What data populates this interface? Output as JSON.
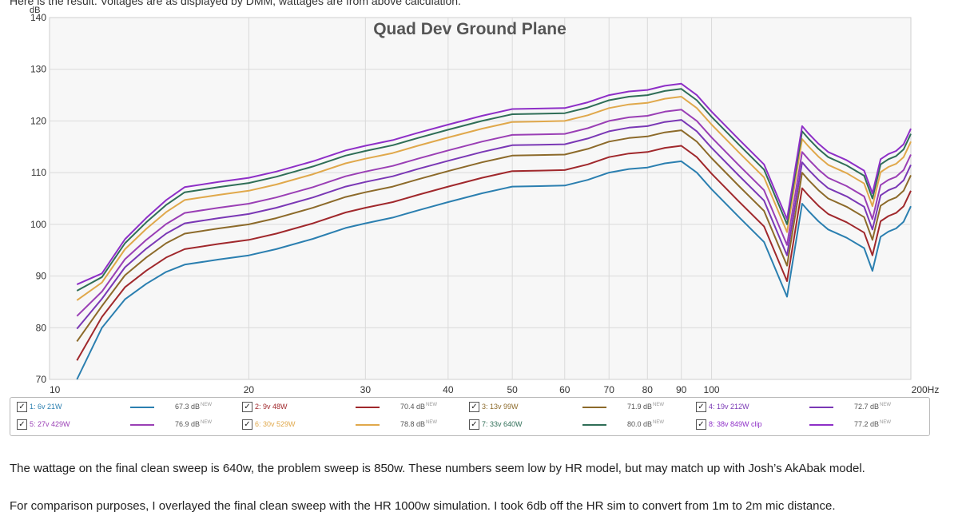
{
  "page": {
    "top_text": "Here is the result. Voltages are as displayed by DMM, wattages are from above calculation.",
    "paragraph1": "The wattage on the final clean sweep is 640w, the problem sweep is 850w. These numbers seem low by HR model, but may match up with Josh’s AkAbak model.",
    "paragraph2": "For comparison purposes, I overlayed the final clean sweep with the HR 1000w simulation. I took 6db off the HR sim to convert from 1m to 2m mic distance."
  },
  "chart_data": {
    "type": "line",
    "title": "Quad Dev Ground Plane",
    "ylabel": "dB",
    "xlabel": "",
    "x_scale": "log",
    "xlim": [
      10,
      200
    ],
    "ylim": [
      70,
      140
    ],
    "grid": true,
    "y_ticks": [
      "140",
      "130",
      "120",
      "110",
      "100",
      "90",
      "80",
      "70"
    ],
    "x_ticks": [
      "10",
      "20",
      "30",
      "40",
      "50",
      "60",
      "70",
      "80",
      "90",
      "100",
      "200Hz"
    ],
    "x": [
      10,
      11,
      12,
      13,
      14,
      15,
      16,
      18,
      20,
      22,
      25,
      28,
      30,
      33,
      36,
      40,
      45,
      50,
      55,
      60,
      65,
      70,
      75,
      80,
      85,
      90,
      95,
      100,
      110,
      120,
      130,
      137,
      140,
      145,
      150,
      160,
      170,
      175,
      180,
      185,
      190,
      195,
      200
    ],
    "reference": [
      null,
      70,
      80,
      85.5,
      88.5,
      90.8,
      92.2,
      93.2,
      94,
      95.2,
      97.2,
      99.3,
      100.2,
      101.3,
      102.7,
      104.3,
      106,
      107.3,
      107.4,
      107.5,
      108.6,
      110,
      110.7,
      111,
      111.8,
      112.2,
      110,
      106.8,
      101.4,
      96.6,
      86,
      104,
      102.6,
      100.6,
      99,
      97.4,
      95.4,
      91,
      97.6,
      98.6,
      99.2,
      100.5,
      103.5
    ],
    "offsets": [
      0,
      3,
      6,
      8,
      10,
      12.5,
      14,
      15
    ],
    "series": [
      {
        "name": "1: 6v 21W",
        "color": "#2b7fb0",
        "value": "67.3 dB",
        "badge": "NEW"
      },
      {
        "name": "2: 9v 48W",
        "color": "#a0282c",
        "value": "70.4 dB",
        "badge": "NEW"
      },
      {
        "name": "3: 13v 99W",
        "color": "#8c6a2a",
        "value": "71.9 dB",
        "badge": "NEW"
      },
      {
        "name": "4: 19v 212W",
        "color": "#7a38b5",
        "value": "72.7 dB",
        "badge": "NEW"
      },
      {
        "name": "5: 27v 429W",
        "color": "#9a3fb5",
        "value": "76.9 dB",
        "badge": "NEW"
      },
      {
        "name": "6: 30v 529W",
        "color": "#e0a84b",
        "value": "78.8 dB",
        "badge": "NEW"
      },
      {
        "name": "7: 33v 640W",
        "color": "#2f6e57",
        "value": "80.0 dB",
        "badge": "NEW"
      },
      {
        "name": "8: 38v 849W clip",
        "color": "#8e2fc7",
        "value": "77.2 dB",
        "badge": "NEW"
      }
    ]
  }
}
